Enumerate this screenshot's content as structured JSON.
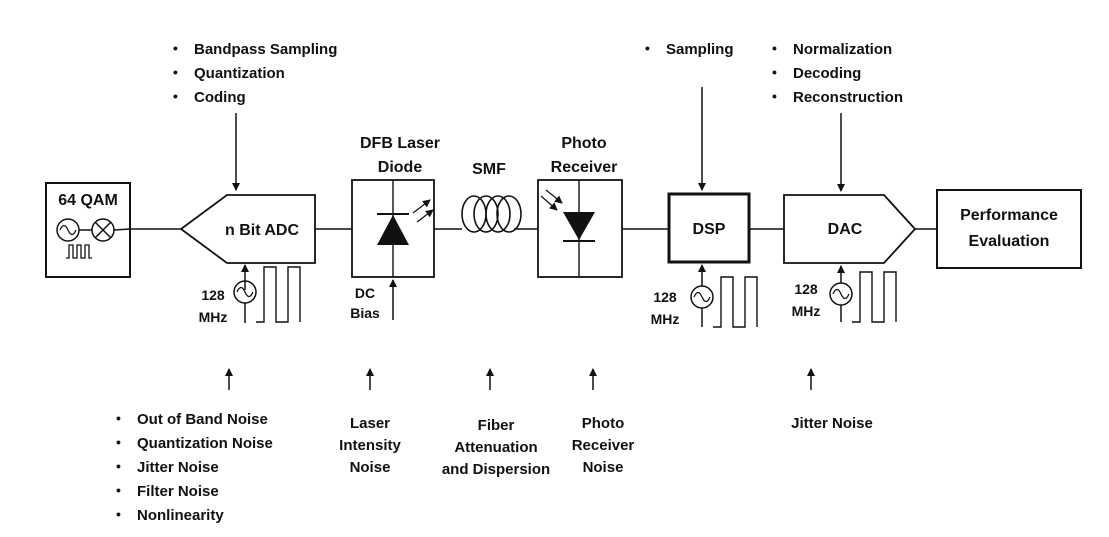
{
  "blocks": {
    "qam": "64 QAM",
    "adc": "n Bit ADC",
    "laser": [
      "DFB Laser",
      "Diode"
    ],
    "smf": "SMF",
    "receiver": [
      "Photo",
      "Receiver"
    ],
    "dsp": "DSP",
    "dac": "DAC",
    "performance": [
      "Performance",
      "Evaluation"
    ]
  },
  "clock_labels": {
    "adc": [
      "128",
      "MHz"
    ],
    "dsp": [
      "128",
      "MHz"
    ],
    "dac": [
      "128",
      "MHz"
    ]
  },
  "dc_bias": [
    "DC",
    "Bias"
  ],
  "top_lists": {
    "adc": [
      "Bandpass Sampling",
      "Quantization",
      "Coding"
    ],
    "dsp": [
      "Sampling"
    ],
    "dac": [
      "Normalization",
      "Decoding",
      "Reconstruction"
    ]
  },
  "noise": {
    "adc": [
      "Out of Band Noise",
      "Quantization Noise",
      "Jitter Noise",
      "Filter Noise",
      "Nonlinearity"
    ],
    "laser": [
      "Laser",
      "Intensity",
      "Noise"
    ],
    "fiber": [
      "Fiber",
      "Attenuation",
      "and Dispersion"
    ],
    "receiver": [
      "Photo",
      "Receiver",
      "Noise"
    ],
    "dac": [
      "Jitter Noise"
    ]
  },
  "bullet_glyph": "•"
}
